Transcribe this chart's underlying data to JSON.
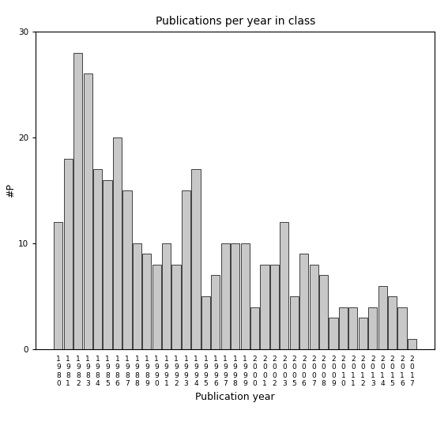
{
  "title": "Publications per year in class",
  "xlabel": "Publication year",
  "ylabel": "#P",
  "bar_color": "#c8c8c8",
  "bar_edgecolor": "#000000",
  "ylim": [
    0,
    30
  ],
  "yticks": [
    0,
    10,
    20,
    30
  ],
  "years": [
    "1980",
    "1981",
    "1982",
    "1983",
    "1984",
    "1985",
    "1986",
    "1987",
    "1988",
    "1989",
    "1990",
    "1991",
    "1992",
    "1993",
    "1994",
    "1995",
    "1996",
    "1997",
    "1998",
    "1999",
    "2000",
    "2001",
    "2002",
    "2003",
    "2005",
    "2006",
    "2007",
    "2008",
    "2009",
    "2010",
    "2011",
    "2012",
    "2013",
    "2014",
    "2015",
    "2016",
    "2017"
  ],
  "values": [
    12,
    18,
    28,
    26,
    17,
    16,
    20,
    15,
    10,
    9,
    8,
    10,
    8,
    15,
    17,
    5,
    7,
    10,
    10,
    10,
    4,
    8,
    8,
    12,
    5,
    9,
    8,
    7,
    3,
    4,
    4,
    3,
    4,
    6,
    5,
    4,
    1
  ],
  "figsize": [
    5.67,
    5.67
  ],
  "dpi": 100,
  "title_fontsize": 10,
  "xlabel_fontsize": 9,
  "ylabel_fontsize": 9,
  "tick_fontsize": 6.5
}
